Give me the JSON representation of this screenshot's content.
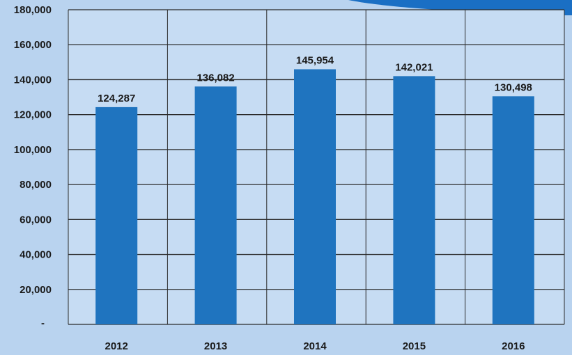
{
  "chart_data": {
    "type": "bar",
    "categories": [
      "2012",
      "2013",
      "2014",
      "2015",
      "2016"
    ],
    "values": [
      124287,
      136082,
      145954,
      142021,
      130498
    ],
    "data_labels": [
      "124,287",
      "136,082",
      "145,954",
      "142,021",
      "130,498"
    ],
    "ylim": [
      0,
      180000
    ],
    "yticks": [
      0,
      20000,
      40000,
      60000,
      80000,
      100000,
      120000,
      140000,
      160000,
      180000
    ],
    "ytick_labels": [
      "-",
      "20,000",
      "40,000",
      "60,000",
      "80,000",
      "100,000",
      "120,000",
      "140,000",
      "160,000",
      "180,000"
    ],
    "grid": true,
    "legend": "none",
    "colors": {
      "bar": "#1f74bf",
      "plot_bg": "#c6dcf3",
      "page_bg": "#b9d3ef",
      "grid": "#2b2b2b",
      "accent_shape": "#1a6fc4"
    }
  }
}
